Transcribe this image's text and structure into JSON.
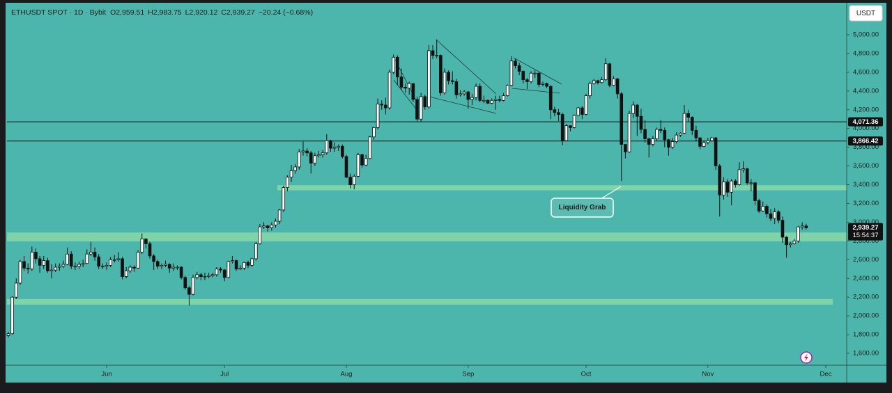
{
  "chart_data": {
    "type": "candlestick",
    "symbol": "ETHUSDT SPOT · 1D · Bybit",
    "legend_items": [
      "O2,959.51",
      "H2,983.75",
      "L2,920.12",
      "C2,939.27",
      "−20.24 (−0.68%)"
    ],
    "currency": "USDT",
    "annotation": "Liquidity Grab",
    "up_color": "#ffffff",
    "down_color": "#111111",
    "zone_color": "#8fdca8",
    "categories": [
      null,
      null,
      null,
      null,
      null,
      null,
      null,
      null,
      null,
      null,
      null,
      null,
      null,
      null,
      null,
      null,
      null,
      null,
      null,
      null,
      null,
      null,
      null,
      null,
      null,
      "Jun",
      null,
      null,
      null,
      null,
      null,
      null,
      null,
      null,
      null,
      null,
      null,
      null,
      null,
      null,
      null,
      null,
      null,
      null,
      null,
      null,
      null,
      null,
      null,
      null,
      null,
      null,
      null,
      null,
      null,
      "Jul",
      null,
      null,
      null,
      null,
      null,
      null,
      null,
      null,
      null,
      null,
      null,
      null,
      null,
      null,
      null,
      null,
      null,
      null,
      null,
      null,
      null,
      null,
      null,
      null,
      null,
      null,
      null,
      null,
      null,
      null,
      "Aug",
      null,
      null,
      null,
      null,
      null,
      null,
      null,
      null,
      null,
      null,
      null,
      null,
      null,
      null,
      null,
      null,
      null,
      null,
      null,
      null,
      null,
      null,
      null,
      null,
      null,
      null,
      null,
      null,
      null,
      null,
      "Sep",
      null,
      null,
      null,
      null,
      null,
      null,
      null,
      null,
      null,
      null,
      null,
      null,
      null,
      null,
      null,
      null,
      null,
      null,
      null,
      null,
      null,
      null,
      null,
      null,
      null,
      null,
      null,
      null,
      null,
      "Oct",
      null,
      null,
      null,
      null,
      null,
      null,
      null,
      null,
      null,
      null,
      null,
      null,
      null,
      null,
      null,
      null,
      null,
      null,
      null,
      null,
      null,
      null,
      null,
      null,
      null,
      null,
      null,
      null,
      null,
      null,
      "Nov",
      null,
      null,
      null,
      null,
      null,
      null,
      null,
      null,
      null,
      null,
      null,
      null,
      null,
      null,
      null,
      null,
      null,
      null,
      null,
      null,
      null,
      null,
      null,
      null,
      null,
      null,
      null,
      null,
      null,
      "Dec"
    ],
    "open": [
      1790,
      1810,
      2200,
      2350,
      2580,
      2510,
      2500,
      2680,
      2610,
      2540,
      2590,
      2480,
      2490,
      2520,
      2530,
      2550,
      2660,
      2530,
      2530,
      2550,
      2560,
      2660,
      2680,
      2630,
      2530,
      2530,
      2540,
      2600,
      2600,
      2610,
      2420,
      2480,
      2520,
      2510,
      2680,
      2820,
      2770,
      2640,
      2580,
      2530,
      2540,
      2550,
      2510,
      2520,
      2520,
      2410,
      2300,
      2230,
      2410,
      2440,
      2420,
      2420,
      2430,
      2440,
      2500,
      2490,
      2410,
      2580,
      2590,
      2500,
      2510,
      2570,
      2540,
      2610,
      2770,
      2950,
      2960,
      2940,
      2970,
      3010,
      3130,
      3370,
      3480,
      3550,
      3590,
      3750,
      3760,
      3740,
      3630,
      3710,
      3720,
      3740,
      3870,
      3790,
      3800,
      3810,
      3700,
      3480,
      3400,
      3490,
      3720,
      3610,
      3680,
      3910,
      4010,
      4260,
      4250,
      4220,
      4600,
      4760,
      4550,
      4440,
      4430,
      4480,
      4310,
      4100,
      4340,
      4230,
      4830,
      4780,
      4780,
      4380,
      4600,
      4510,
      4500,
      4360,
      4370,
      4390,
      4310,
      4330,
      4450,
      4300,
      4300,
      4270,
      4300,
      4310,
      4300,
      4350,
      4460,
      4720,
      4670,
      4610,
      4520,
      4500,
      4590,
      4590,
      4470,
      4480,
      4450,
      4200,
      4170,
      4150,
      3870,
      4030,
      4010,
      4140,
      4220,
      4150,
      4350,
      4480,
      4510,
      4490,
      4520,
      4690,
      4460,
      4530,
      4370,
      3830,
      3750,
      4160,
      4250,
      4130,
      3990,
      3890,
      3830,
      3890,
      3990,
      3980,
      3880,
      3800,
      3860,
      3930,
      3950,
      4160,
      4120,
      3980,
      3900,
      3810,
      3850,
      3870,
      3900,
      3600,
      3290,
      3430,
      3320,
      3440,
      3400,
      3560,
      3570,
      3420,
      3420,
      3230,
      3120,
      3170,
      3090,
      3040,
      3110,
      3020,
      2840,
      2760,
      2770,
      2800,
      2950,
      2959.51,
      null,
      null,
      null,
      null,
      null
    ],
    "high": [
      1830,
      2210,
      2400,
      2600,
      2640,
      2560,
      2740,
      2720,
      2640,
      2640,
      2620,
      2550,
      2560,
      2560,
      2590,
      2730,
      2690,
      2570,
      2580,
      2600,
      2710,
      2790,
      2730,
      2660,
      2560,
      2570,
      2630,
      2650,
      2680,
      2630,
      2520,
      2540,
      2540,
      2700,
      2880,
      2830,
      2790,
      2660,
      2600,
      2560,
      2590,
      2560,
      2560,
      2540,
      2530,
      2430,
      2320,
      2440,
      2470,
      2460,
      2460,
      2460,
      2460,
      2520,
      2520,
      2500,
      2590,
      2640,
      2600,
      2540,
      2580,
      2590,
      2620,
      2790,
      2980,
      3000,
      2970,
      3000,
      3040,
      3140,
      3390,
      3500,
      3610,
      3620,
      3780,
      3860,
      3790,
      3760,
      3740,
      3760,
      3770,
      3940,
      3880,
      3850,
      3830,
      3830,
      3720,
      3520,
      3510,
      3740,
      3730,
      3720,
      3920,
      4020,
      4320,
      4300,
      4330,
      4630,
      4790,
      4780,
      4640,
      4480,
      4500,
      4480,
      4340,
      4380,
      4360,
      4890,
      4890,
      4950,
      4790,
      4640,
      4620,
      4610,
      4530,
      4410,
      4410,
      4400,
      4370,
      4480,
      4480,
      4350,
      4310,
      4320,
      4350,
      4350,
      4380,
      4470,
      4770,
      4740,
      4700,
      4620,
      4540,
      4610,
      4620,
      4600,
      4500,
      4490,
      4460,
      4230,
      4210,
      4170,
      4050,
      4030,
      4150,
      4230,
      4240,
      4370,
      4500,
      4530,
      4520,
      4550,
      4750,
      4700,
      4560,
      4540,
      4390,
      3830,
      4190,
      4290,
      4260,
      4210,
      4090,
      3900,
      3920,
      4010,
      4090,
      4010,
      3890,
      3900,
      3960,
      3960,
      4250,
      4200,
      4130,
      4030,
      3910,
      3870,
      3900,
      3910,
      3910,
      3620,
      3480,
      3460,
      3460,
      3460,
      3640,
      3650,
      3580,
      3460,
      3430,
      3250,
      3220,
      3190,
      3140,
      3150,
      3130,
      3060,
      2850,
      2790,
      2820,
      2960,
      3000,
      2983.75,
      null,
      null,
      null,
      null,
      null
    ],
    "low": [
      1770,
      1800,
      2180,
      2330,
      2480,
      2450,
      2480,
      2560,
      2460,
      2500,
      2460,
      2400,
      2470,
      2480,
      2510,
      2540,
      2500,
      2490,
      2500,
      2520,
      2550,
      2640,
      2590,
      2500,
      2500,
      2490,
      2520,
      2570,
      2580,
      2390,
      2400,
      2460,
      2470,
      2500,
      2660,
      2720,
      2610,
      2490,
      2500,
      2500,
      2520,
      2460,
      2480,
      2490,
      2390,
      2280,
      2110,
      2220,
      2390,
      2380,
      2380,
      2400,
      2410,
      2420,
      2460,
      2370,
      2400,
      2560,
      2480,
      2490,
      2490,
      2510,
      2520,
      2590,
      2760,
      2930,
      2900,
      2910,
      2940,
      2980,
      3110,
      3330,
      3430,
      3520,
      3560,
      3710,
      3700,
      3520,
      3600,
      3690,
      3690,
      3720,
      3750,
      3750,
      3760,
      3680,
      3470,
      3360,
      3350,
      3480,
      3580,
      3600,
      3670,
      3880,
      3990,
      4200,
      4150,
      4200,
      4580,
      4460,
      4410,
      4380,
      4360,
      4280,
      4070,
      4070,
      4200,
      4210,
      4740,
      4750,
      4350,
      4360,
      4470,
      4470,
      4320,
      4340,
      4350,
      4210,
      4250,
      4300,
      4280,
      4270,
      4260,
      4260,
      4200,
      4280,
      4290,
      4340,
      4450,
      4640,
      4570,
      4480,
      4420,
      4480,
      4540,
      4440,
      4450,
      4430,
      4100,
      4130,
      4080,
      3820,
      3860,
      3970,
      4000,
      4130,
      4100,
      4140,
      4320,
      4470,
      4470,
      4480,
      4510,
      4440,
      4450,
      4320,
      3440,
      3680,
      3740,
      4110,
      3920,
      3950,
      3850,
      3690,
      3810,
      3870,
      3950,
      3800,
      3710,
      3780,
      3840,
      3910,
      3940,
      4070,
      3930,
      3860,
      3780,
      3800,
      3830,
      3860,
      3560,
      3060,
      3240,
      3270,
      3180,
      3370,
      3390,
      3530,
      3400,
      3330,
      3180,
      3100,
      3110,
      3050,
      3010,
      2980,
      2990,
      2780,
      2620,
      2730,
      2760,
      2780,
      2920,
      2920.12,
      null,
      null,
      null,
      null,
      null
    ],
    "close": [
      1810,
      2200,
      2350,
      2580,
      2510,
      2500,
      2680,
      2610,
      2540,
      2590,
      2480,
      2490,
      2520,
      2530,
      2550,
      2660,
      2530,
      2530,
      2550,
      2560,
      2660,
      2680,
      2630,
      2530,
      2530,
      2540,
      2600,
      2600,
      2610,
      2420,
      2480,
      2520,
      2510,
      2680,
      2820,
      2770,
      2640,
      2580,
      2530,
      2540,
      2550,
      2510,
      2520,
      2520,
      2410,
      2300,
      2230,
      2410,
      2440,
      2420,
      2420,
      2430,
      2440,
      2500,
      2490,
      2410,
      2580,
      2590,
      2500,
      2510,
      2570,
      2540,
      2610,
      2770,
      2950,
      2960,
      2940,
      2970,
      3010,
      3130,
      3370,
      3480,
      3550,
      3590,
      3750,
      3760,
      3740,
      3630,
      3710,
      3720,
      3740,
      3870,
      3790,
      3800,
      3810,
      3700,
      3480,
      3400,
      3490,
      3720,
      3610,
      3680,
      3910,
      4010,
      4260,
      4250,
      4220,
      4600,
      4760,
      4550,
      4440,
      4430,
      4480,
      4310,
      4100,
      4340,
      4230,
      4830,
      4780,
      4780,
      4380,
      4600,
      4510,
      4500,
      4360,
      4370,
      4390,
      4310,
      4330,
      4450,
      4300,
      4300,
      4270,
      4300,
      4310,
      4300,
      4350,
      4460,
      4720,
      4670,
      4610,
      4520,
      4500,
      4590,
      4590,
      4470,
      4480,
      4450,
      4200,
      4170,
      4150,
      3870,
      4030,
      4010,
      4140,
      4220,
      4150,
      4350,
      4480,
      4510,
      4490,
      4520,
      4690,
      4460,
      4530,
      4370,
      3830,
      3750,
      4160,
      4250,
      4130,
      3990,
      3890,
      3830,
      3890,
      3990,
      3980,
      3880,
      3800,
      3860,
      3930,
      3950,
      4160,
      4120,
      3980,
      3900,
      3810,
      3850,
      3870,
      3900,
      3600,
      3290,
      3430,
      3320,
      3440,
      3400,
      3560,
      3570,
      3420,
      3420,
      3230,
      3120,
      3170,
      3090,
      3040,
      3110,
      3020,
      2840,
      2760,
      2770,
      2800,
      2950,
      2960,
      2939.27,
      null,
      null,
      null,
      null,
      null
    ],
    "ylim": [
      1474,
      5334
    ],
    "yticks": [
      {
        "value": 1600,
        "label": "1,600.00"
      },
      {
        "value": 1800,
        "label": "1,800.00"
      },
      {
        "value": 2000,
        "label": "2,000.00"
      },
      {
        "value": 2200,
        "label": "2,200.00"
      },
      {
        "value": 2400,
        "label": "2,400.00"
      },
      {
        "value": 2600,
        "label": "2,600.00"
      },
      {
        "value": 2800,
        "label": "2,800.00"
      },
      {
        "value": 3000,
        "label": "3,000.00"
      },
      {
        "value": 3200,
        "label": "3,200.00"
      },
      {
        "value": 3400,
        "label": "3,400.00"
      },
      {
        "value": 3600,
        "label": "3,600.00"
      },
      {
        "value": 3800,
        "label": "3,800.00"
      },
      {
        "value": 4000,
        "label": "4,000.00"
      },
      {
        "value": 4200,
        "label": "4,200.00"
      },
      {
        "value": 4400,
        "label": "4,400.00"
      },
      {
        "value": 4600,
        "label": "4,600.00"
      },
      {
        "value": 4800,
        "label": "4,800.00"
      },
      {
        "value": 5000,
        "label": "5,000.00"
      }
    ],
    "levels": [
      {
        "value": 4071.36,
        "label": "4,071.36"
      },
      {
        "value": 3866.42,
        "label": "3,866.42"
      }
    ],
    "zones": [
      [
        3340,
        3395
      ],
      [
        2795,
        2890
      ],
      [
        2120,
        2180
      ]
    ],
    "last_price": {
      "value": 2939.27,
      "label": "2,939.27"
    },
    "countdown": "15:54:37"
  }
}
